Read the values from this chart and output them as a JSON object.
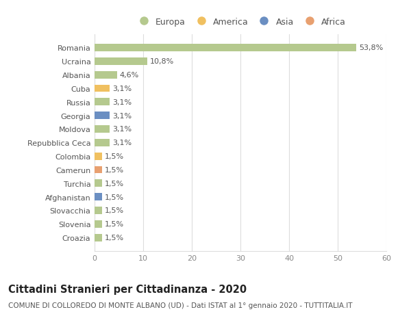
{
  "countries": [
    "Romania",
    "Ucraina",
    "Albania",
    "Cuba",
    "Russia",
    "Georgia",
    "Moldova",
    "Repubblica Ceca",
    "Colombia",
    "Camerun",
    "Turchia",
    "Afghanistan",
    "Slovacchia",
    "Slovenia",
    "Croazia"
  ],
  "values": [
    53.8,
    10.8,
    4.6,
    3.1,
    3.1,
    3.1,
    3.1,
    3.1,
    1.5,
    1.5,
    1.5,
    1.5,
    1.5,
    1.5,
    1.5
  ],
  "labels": [
    "53,8%",
    "10,8%",
    "4,6%",
    "3,1%",
    "3,1%",
    "3,1%",
    "3,1%",
    "3,1%",
    "1,5%",
    "1,5%",
    "1,5%",
    "1,5%",
    "1,5%",
    "1,5%",
    "1,5%"
  ],
  "continents": [
    "Europa",
    "Europa",
    "Europa",
    "America",
    "Europa",
    "Asia",
    "Europa",
    "Europa",
    "America",
    "Africa",
    "Europa",
    "Asia",
    "Europa",
    "Europa",
    "Europa"
  ],
  "colors": {
    "Europa": "#b5c98e",
    "America": "#f0c060",
    "Asia": "#6b8fc2",
    "Africa": "#e8a070"
  },
  "legend_order": [
    "Europa",
    "America",
    "Asia",
    "Africa"
  ],
  "title": "Cittadini Stranieri per Cittadinanza - 2020",
  "subtitle": "COMUNE DI COLLOREDO DI MONTE ALBANO (UD) - Dati ISTAT al 1° gennaio 2020 - TUTTITALIA.IT",
  "xlim": [
    0,
    60
  ],
  "xticks": [
    0,
    10,
    20,
    30,
    40,
    50,
    60
  ],
  "bg_color": "#ffffff",
  "grid_color": "#dddddd",
  "bar_height": 0.55,
  "label_fontsize": 8.0,
  "tick_fontsize": 8.0,
  "title_fontsize": 10.5,
  "subtitle_fontsize": 7.5
}
